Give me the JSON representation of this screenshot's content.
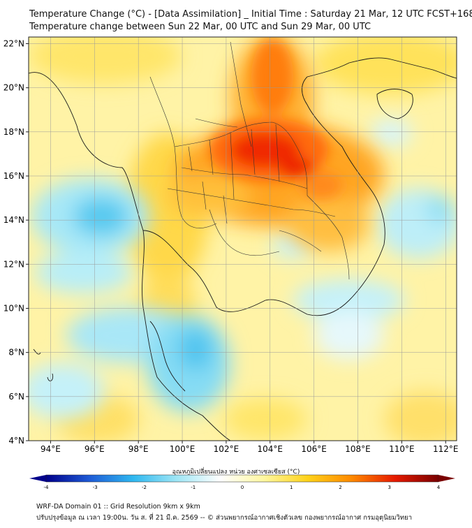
{
  "header": {
    "title_line1": "Temperature Change (°C) - [Data Assimilation] _ Initial Time : Saturday 21 Mar, 12 UTC FCST+168",
    "title_line2": "Temperature change between Sun 22 Mar, 00 UTC and Sun 29 Mar, 00 UTC"
  },
  "map": {
    "lon_range": [
      93,
      112.5
    ],
    "lat_range": [
      4,
      22.3
    ],
    "lon_ticks": [
      "94°E",
      "96°E",
      "98°E",
      "100°E",
      "102°E",
      "104°E",
      "106°E",
      "108°E",
      "110°E",
      "112°E"
    ],
    "lon_values": [
      94,
      96,
      98,
      100,
      102,
      104,
      106,
      108,
      110,
      112
    ],
    "lat_ticks": [
      "4°N",
      "6°N",
      "8°N",
      "10°N",
      "12°N",
      "14°N",
      "16°N",
      "18°N",
      "20°N",
      "22°N"
    ],
    "lat_values": [
      4,
      6,
      8,
      10,
      12,
      14,
      16,
      18,
      20,
      22
    ],
    "gridlines": true
  },
  "legend": {
    "title": "อุณหภูมิเปลี่ยนแปลง หน่วย องศาเซลเซียส (°C)",
    "tick_labels": [
      "-4",
      "-3",
      "-2",
      "-1",
      "0",
      "1",
      "2",
      "3",
      "4"
    ],
    "tick_values": [
      -4,
      -3,
      -2,
      -1,
      0,
      1,
      2,
      3,
      4
    ],
    "range": [
      -4,
      4
    ],
    "orientation": "horizontal",
    "colors": [
      "#00008b",
      "#1e5bd6",
      "#2fb8f0",
      "#9fe6f5",
      "#ffffff",
      "#fff7a0",
      "#ffd21a",
      "#ff8a00",
      "#e61a00",
      "#7a0000"
    ]
  },
  "footer": {
    "line1": "WRF-DA Domain 01 :: Grid Resolution 9km x 9km",
    "line2": "ปรับปรุงข้อมูล ณ เวลา 19:00น. วัน ส. ที่ 21 มี.ค. 2569 -- © ส่วนพยากรณ์อากาศเชิงตัวเลข กองพยากรณ์อากาศ กรมอุตุนิยมวิทยา"
  }
}
